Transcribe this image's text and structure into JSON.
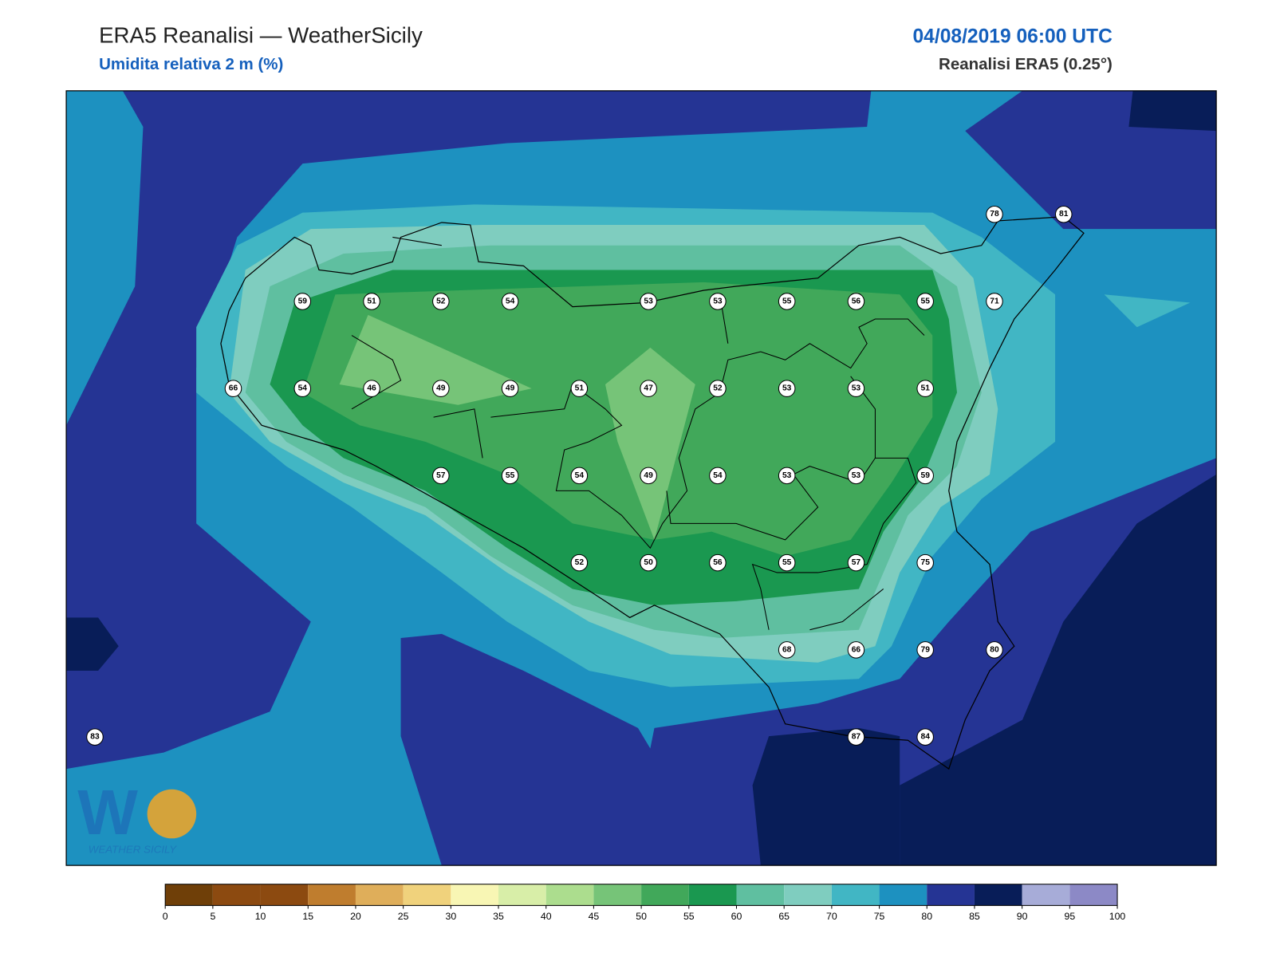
{
  "header": {
    "title": "ERA5 Reanalisi — WeatherSicily",
    "subtitle": "Umidita relativa 2 m (%)",
    "datetime": "04/08/2019 06:00 UTC",
    "source": "Reanalisi ERA5 (0.25°)"
  },
  "stations": [
    78,
    81,
    59,
    51,
    52,
    54,
    53,
    53,
    55,
    56,
    55,
    71,
    66,
    54,
    46,
    49,
    49,
    51,
    47,
    52,
    53,
    53,
    51,
    57,
    55,
    54,
    49,
    54,
    53,
    53,
    59,
    52,
    50,
    56,
    55,
    57,
    75,
    68,
    66,
    79,
    80,
    83,
    87,
    84
  ],
  "colorbar": {
    "ticks": [
      0,
      5,
      10,
      15,
      20,
      25,
      30,
      35,
      40,
      45,
      50,
      55,
      60,
      65,
      70,
      75,
      80,
      85,
      90,
      95,
      100
    ],
    "colors": [
      "#6f3f08",
      "#8c4a10",
      "#8c4a10",
      "#bf7d2e",
      "#dfae5a",
      "#f0d27c",
      "#f8f6b4",
      "#d8eea8",
      "#acdd8e",
      "#76c478",
      "#41a85a",
      "#1a9850",
      "#5fbfa0",
      "#7fcdbf",
      "#41b6c4",
      "#1d91c0",
      "#253494",
      "#081d58",
      "#a7acd8",
      "#8c89c6"
    ]
  },
  "logo": {
    "text": "WEATHER SICILY"
  }
}
